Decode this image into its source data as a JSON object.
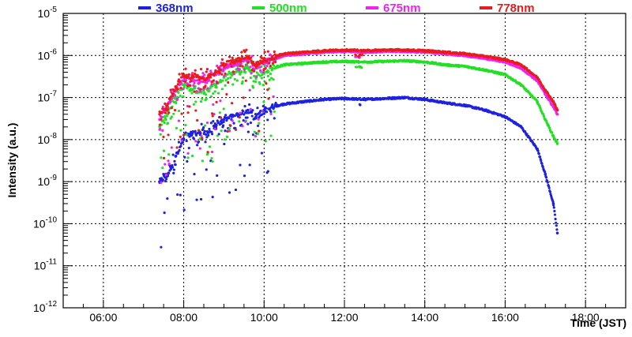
{
  "chart_data": {
    "type": "scatter",
    "title": "",
    "xlabel": "Time (JST)",
    "ylabel": "Intensity (a.u.)",
    "x_units": "hours (JST)",
    "xlim": [
      5.0,
      19.0
    ],
    "ylim": [
      1e-12,
      1e-05
    ],
    "y_scale": "log",
    "grid": true,
    "legend_position": "top",
    "x_ticks": [
      {
        "value": 6,
        "label": "06:00"
      },
      {
        "value": 8,
        "label": "08:00"
      },
      {
        "value": 10,
        "label": "10:00"
      },
      {
        "value": 12,
        "label": "12:00"
      },
      {
        "value": 14,
        "label": "14:00"
      },
      {
        "value": 16,
        "label": "16:00"
      },
      {
        "value": 18,
        "label": "18:00"
      }
    ],
    "y_ticks": [
      {
        "value": 1e-12,
        "base": "10",
        "exp": "-12"
      },
      {
        "value": 1e-11,
        "base": "10",
        "exp": "-11"
      },
      {
        "value": 1e-10,
        "base": "10",
        "exp": "-10"
      },
      {
        "value": 1e-09,
        "base": "10",
        "exp": "-9"
      },
      {
        "value": 1e-08,
        "base": "10",
        "exp": "-8"
      },
      {
        "value": 1e-07,
        "base": "10",
        "exp": "-7"
      },
      {
        "value": 1e-06,
        "base": "10",
        "exp": "-6"
      },
      {
        "value": 1e-05,
        "base": "10",
        "exp": "-5"
      }
    ],
    "series": [
      {
        "name": "368nm",
        "color": "#1e22e0",
        "x": [
          7.4,
          7.6,
          7.8,
          8.0,
          8.2,
          8.4,
          8.6,
          8.8,
          9.0,
          9.2,
          9.4,
          9.6,
          9.8,
          10.0,
          10.2,
          10.5,
          11.0,
          11.5,
          12.0,
          12.5,
          13.0,
          13.5,
          14.0,
          14.5,
          15.0,
          15.5,
          16.0,
          16.4,
          16.8,
          17.0,
          17.2,
          17.3
        ],
        "y": [
          1e-09,
          1.5e-09,
          4e-09,
          1e-08,
          1.4e-08,
          1.5e-08,
          1.5e-08,
          2e-08,
          3e-08,
          3.5e-08,
          4e-08,
          5e-08,
          3.5e-08,
          5e-08,
          6e-08,
          7e-08,
          8e-08,
          9e-08,
          9.5e-08,
          9e-08,
          9.5e-08,
          1e-07,
          9e-08,
          7.5e-08,
          6.5e-08,
          5e-08,
          3.5e-08,
          2e-08,
          6e-09,
          1.5e-09,
          3e-10,
          6e-11
        ]
      },
      {
        "name": "500nm",
        "color": "#22e022",
        "x": [
          7.4,
          7.6,
          7.8,
          8.0,
          8.2,
          8.4,
          8.6,
          8.8,
          9.0,
          9.2,
          9.4,
          9.6,
          9.8,
          10.0,
          10.2,
          10.5,
          11.0,
          11.5,
          12.0,
          12.5,
          13.0,
          13.5,
          14.0,
          14.5,
          15.0,
          15.5,
          16.0,
          16.4,
          16.8,
          17.0,
          17.2,
          17.3
        ],
        "y": [
          2e-08,
          4e-08,
          1e-07,
          2e-07,
          1.5e-07,
          1.5e-07,
          1.5e-07,
          2e-07,
          3e-07,
          3.5e-07,
          4e-07,
          5e-07,
          3e-07,
          4e-07,
          5e-07,
          6e-07,
          6.5e-07,
          7e-07,
          7.2e-07,
          7e-07,
          7.2e-07,
          7.5e-07,
          7e-07,
          6e-07,
          5.5e-07,
          4.5e-07,
          3.5e-07,
          2e-07,
          8e-08,
          3e-08,
          1.2e-08,
          8e-09
        ]
      },
      {
        "name": "675nm",
        "color": "#f022f0",
        "x": [
          7.4,
          7.6,
          7.8,
          8.0,
          8.2,
          8.4,
          8.6,
          8.8,
          9.0,
          9.2,
          9.4,
          9.6,
          9.8,
          10.0,
          10.2,
          10.5,
          11.0,
          11.5,
          12.0,
          12.5,
          13.0,
          13.5,
          14.0,
          14.5,
          15.0,
          15.5,
          16.0,
          16.4,
          16.8,
          17.0,
          17.2,
          17.3
        ],
        "y": [
          3e-08,
          6e-08,
          1.5e-07,
          3e-07,
          2.5e-07,
          2.5e-07,
          2.5e-07,
          3.5e-07,
          5e-07,
          6e-07,
          7e-07,
          8e-07,
          5e-07,
          7e-07,
          8e-07,
          1e-06,
          1.1e-06,
          1.2e-06,
          1.25e-06,
          1.2e-06,
          1.25e-06,
          1.25e-06,
          1.2e-06,
          1.1e-06,
          1e-06,
          8.5e-07,
          7e-07,
          5e-07,
          2.5e-07,
          1.2e-07,
          6e-08,
          4e-08
        ]
      },
      {
        "name": "778nm",
        "color": "#e81c1c",
        "x": [
          7.4,
          7.6,
          7.8,
          8.0,
          8.2,
          8.4,
          8.6,
          8.8,
          9.0,
          9.2,
          9.4,
          9.6,
          9.8,
          10.0,
          10.2,
          10.5,
          11.0,
          11.5,
          12.0,
          12.5,
          13.0,
          13.5,
          14.0,
          14.5,
          15.0,
          15.5,
          16.0,
          16.4,
          16.8,
          17.0,
          17.2,
          17.3
        ],
        "y": [
          4e-08,
          7e-08,
          1.8e-07,
          3.5e-07,
          3e-07,
          3e-07,
          3e-07,
          4e-07,
          6e-07,
          7e-07,
          8e-07,
          9e-07,
          6e-07,
          8e-07,
          9e-07,
          1.1e-06,
          1.2e-06,
          1.3e-06,
          1.35e-06,
          1.3e-06,
          1.35e-06,
          1.35e-06,
          1.3e-06,
          1.2e-06,
          1.1e-06,
          9.5e-07,
          8e-07,
          6e-07,
          3e-07,
          1.5e-07,
          8e-08,
          5e-08
        ]
      }
    ]
  }
}
